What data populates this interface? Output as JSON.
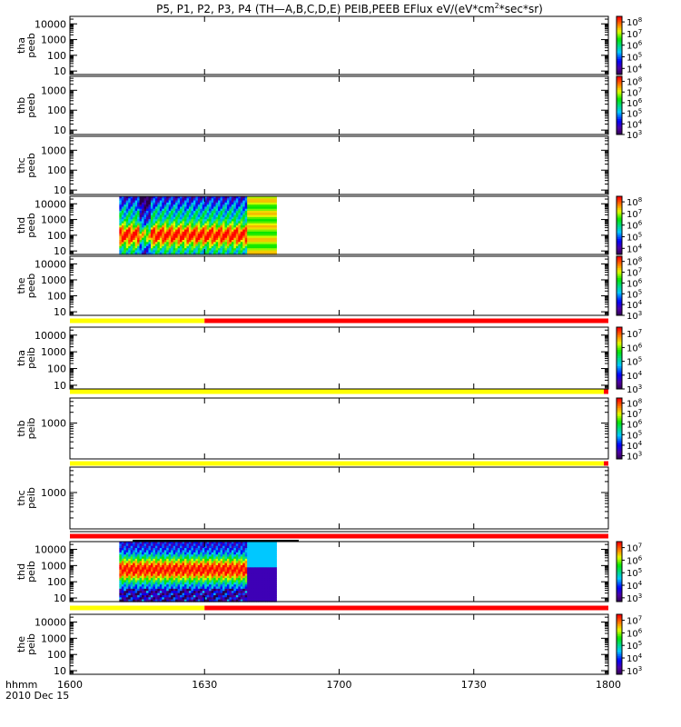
{
  "title": {
    "main": "P5, P1, P2, P3, P4 (TH—A,B,C,D,E) PEIB,PEEB EFlux eV/(eV*cm",
    "sup": "2",
    "end": "*sec*sr)"
  },
  "colors": {
    "bar_yellow": "#ffff00",
    "bar_red": "#ff0000",
    "bar_black": "#000000"
  },
  "chart_data": {
    "type": "heatmap",
    "x_axis": {
      "range": [
        "16:00",
        "18:00"
      ],
      "ticks": [
        {
          "t": 0,
          "label": "1600"
        },
        {
          "t": 30,
          "label": "1630"
        },
        {
          "t": 60,
          "label": "1700"
        },
        {
          "t": 90,
          "label": "1730"
        },
        {
          "t": 120,
          "label": "1800"
        }
      ],
      "label_left": "hhmm",
      "date_label": "2010 Dec 15"
    },
    "y_scale": "log",
    "panels": [
      {
        "id": "thapeeb",
        "ylabel": [
          "tha",
          "peeb"
        ],
        "ylim": [
          6,
          30000
        ],
        "yticks": [
          10,
          100,
          1000,
          10000
        ],
        "colorbar": {
          "range": [
            3000,
            300000000
          ],
          "ticks": [
            {
              "v": 10000,
              "exp": "4"
            },
            {
              "v": 100000,
              "exp": "5"
            },
            {
              "v": 1000000,
              "exp": "6"
            },
            {
              "v": 10000000,
              "exp": "7"
            },
            {
              "v": 100000000,
              "exp": "8"
            }
          ]
        }
      },
      {
        "id": "thbpeeb",
        "ylabel": [
          "thb",
          "peeb"
        ],
        "ylim": [
          6,
          5000
        ],
        "yticks": [
          10,
          100,
          1000
        ],
        "colorbar": {
          "range": [
            1000,
            300000000
          ],
          "ticks": [
            {
              "v": 1000,
              "exp": "3"
            },
            {
              "v": 10000,
              "exp": "4"
            },
            {
              "v": 100000,
              "exp": "5"
            },
            {
              "v": 1000000,
              "exp": "6"
            },
            {
              "v": 10000000,
              "exp": "7"
            },
            {
              "v": 100000000,
              "exp": "8"
            }
          ]
        }
      },
      {
        "id": "thcpeeb",
        "ylabel": [
          "thc",
          "peeb"
        ],
        "ylim": [
          6,
          5000
        ],
        "yticks": [
          10,
          100,
          1000
        ],
        "colorbar": null
      },
      {
        "id": "thdpeeb",
        "ylabel": [
          "thd",
          "peeb"
        ],
        "ylim": [
          6,
          30000
        ],
        "yticks": [
          10,
          100,
          1000,
          10000
        ],
        "colorbar": {
          "range": [
            3000,
            300000000
          ],
          "ticks": [
            {
              "v": 10000,
              "exp": "4"
            },
            {
              "v": 100000,
              "exp": "5"
            },
            {
              "v": 1000000,
              "exp": "6"
            },
            {
              "v": 10000000,
              "exp": "7"
            },
            {
              "v": 100000000,
              "exp": "8"
            }
          ]
        },
        "data": {
          "t_start": 11,
          "t_end": 46,
          "pattern": "peeb"
        }
      },
      {
        "id": "thepeeb",
        "ylabel": [
          "the",
          "peeb"
        ],
        "ylim": [
          6,
          30000
        ],
        "yticks": [
          10,
          100,
          1000,
          10000
        ],
        "colorbar": {
          "range": [
            1000,
            300000000
          ],
          "ticks": [
            {
              "v": 1000,
              "exp": "3"
            },
            {
              "v": 10000,
              "exp": "4"
            },
            {
              "v": 100000,
              "exp": "5"
            },
            {
              "v": 1000000,
              "exp": "6"
            },
            {
              "v": 10000000,
              "exp": "7"
            },
            {
              "v": 100000000,
              "exp": "8"
            }
          ]
        },
        "bar": [
          {
            "t0": 0,
            "t1": 30,
            "color": "yellow"
          },
          {
            "t0": 30,
            "t1": 120,
            "color": "red"
          }
        ]
      },
      {
        "id": "thapeib",
        "ylabel": [
          "tha",
          "peib"
        ],
        "ylim": [
          6,
          30000
        ],
        "yticks": [
          10,
          100,
          1000,
          10000
        ],
        "colorbar": {
          "range": [
            1000,
            30000000
          ],
          "ticks": [
            {
              "v": 1000,
              "exp": "3"
            },
            {
              "v": 10000,
              "exp": "4"
            },
            {
              "v": 100000,
              "exp": "5"
            },
            {
              "v": 1000000,
              "exp": "6"
            },
            {
              "v": 10000000,
              "exp": "7"
            }
          ]
        },
        "bar": [
          {
            "t0": 0,
            "t1": 119,
            "color": "yellow"
          },
          {
            "t0": 119,
            "t1": 120,
            "color": "red"
          }
        ]
      },
      {
        "id": "thbpeib",
        "ylabel": [
          "thb",
          "peib"
        ],
        "ylim": [
          100,
          5000
        ],
        "yticks": [
          1000
        ],
        "colorbar": {
          "range": [
            500,
            300000000
          ],
          "ticks": [
            {
              "v": 1000,
              "exp": "3"
            },
            {
              "v": 10000,
              "exp": "4"
            },
            {
              "v": 100000,
              "exp": "5"
            },
            {
              "v": 1000000,
              "exp": "6"
            },
            {
              "v": 10000000,
              "exp": "7"
            },
            {
              "v": 100000000,
              "exp": "8"
            }
          ]
        },
        "bar": [
          {
            "t0": 0,
            "t1": 119,
            "color": "yellow"
          },
          {
            "t0": 119,
            "t1": 120,
            "color": "red"
          }
        ]
      },
      {
        "id": "thcpeib",
        "ylabel": [
          "thc",
          "peib"
        ],
        "ylim": [
          100,
          5000
        ],
        "yticks": [
          1000
        ],
        "colorbar": null,
        "bar": [
          {
            "t0": 0,
            "t1": 120,
            "color": "red"
          }
        ]
      },
      {
        "id": "thdpeib",
        "ylabel": [
          "thd",
          "peib"
        ],
        "ylim": [
          6,
          30000
        ],
        "yticks": [
          10,
          100,
          1000,
          10000
        ],
        "colorbar": {
          "range": [
            500,
            30000000
          ],
          "ticks": [
            {
              "v": 1000,
              "exp": "3"
            },
            {
              "v": 10000,
              "exp": "4"
            },
            {
              "v": 100000,
              "exp": "5"
            },
            {
              "v": 1000000,
              "exp": "6"
            },
            {
              "v": 10000000,
              "exp": "7"
            }
          ]
        },
        "data": {
          "t_start": 11,
          "t_end": 46,
          "pattern": "peib"
        },
        "bar": [
          {
            "t0": 0,
            "t1": 30,
            "color": "yellow"
          },
          {
            "t0": 30,
            "t1": 120,
            "color": "red"
          }
        ]
      },
      {
        "id": "thepeib",
        "ylabel": [
          "the",
          "peib"
        ],
        "ylim": [
          6,
          30000
        ],
        "yticks": [
          10,
          100,
          1000,
          10000
        ],
        "colorbar": {
          "range": [
            500,
            30000000
          ],
          "ticks": [
            {
              "v": 1000,
              "exp": "3"
            },
            {
              "v": 10000,
              "exp": "4"
            },
            {
              "v": 100000,
              "exp": "5"
            },
            {
              "v": 1000000,
              "exp": "6"
            },
            {
              "v": 10000000,
              "exp": "7"
            }
          ]
        }
      }
    ]
  }
}
